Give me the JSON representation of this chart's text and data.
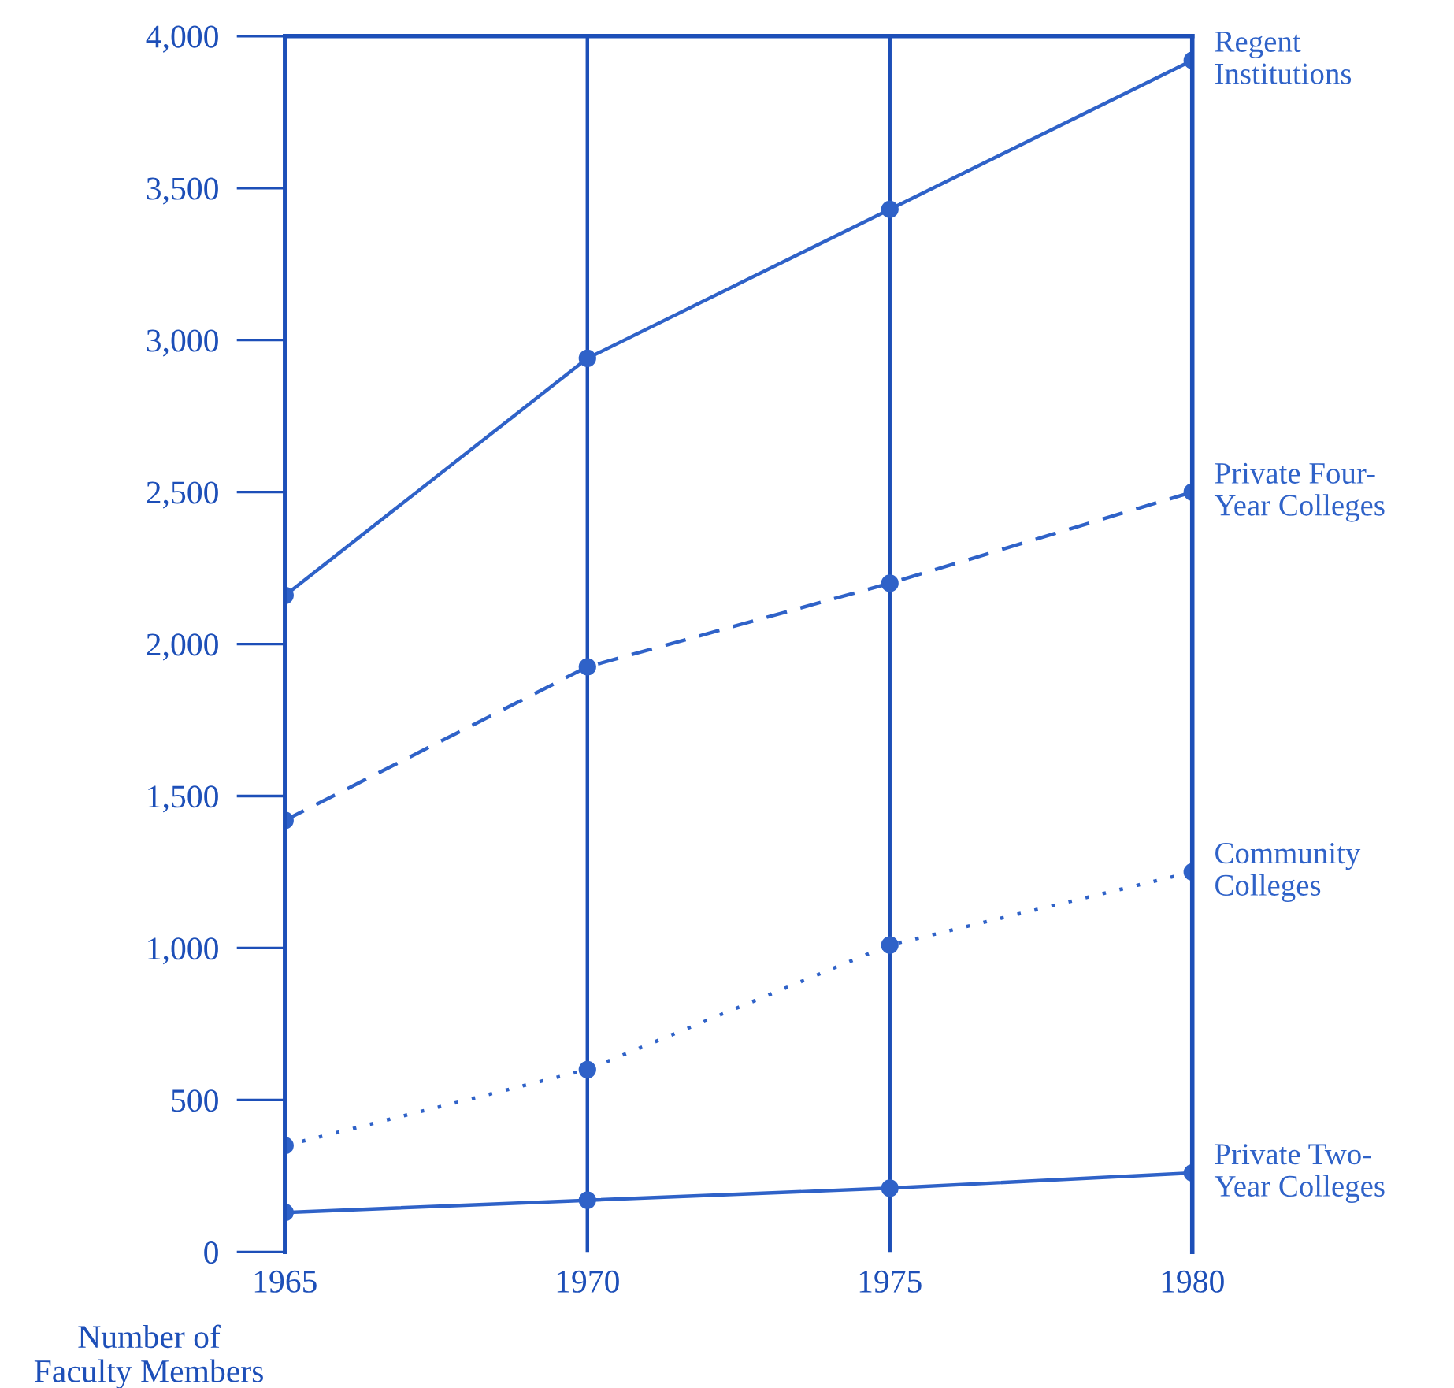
{
  "chart_data": {
    "type": "line",
    "x": [
      1965,
      1970,
      1975,
      1980
    ],
    "xlim": [
      1965,
      1980
    ],
    "xticks": [
      1965,
      1970,
      1975,
      1980
    ],
    "ylim": [
      0,
      4000
    ],
    "yticks": [
      0,
      {
        "value": 500,
        "label": "500"
      },
      {
        "value": 1000,
        "label": "1,000"
      },
      {
        "value": 1500,
        "label": "1,500"
      },
      {
        "value": 2000,
        "label": "2,000"
      },
      {
        "value": 2500,
        "label": "2,500"
      },
      {
        "value": 3000,
        "label": "3,000"
      },
      {
        "value": 3500,
        "label": "3,500"
      },
      {
        "value": 4000,
        "label": "4,000"
      }
    ],
    "ylabel": "Number of\nFaculty Members",
    "grid": "x",
    "legend": false,
    "marker": "circle",
    "series": [
      {
        "name": "Regent\nInstitutions",
        "color": "#2f62c8",
        "line_style": "solid",
        "values": [
          2160,
          2940,
          3430,
          3920
        ]
      },
      {
        "name": "Private Four-\nYear Colleges",
        "color": "#2f62c8",
        "line_style": "dashed",
        "values": [
          1420,
          1925,
          2200,
          2500
        ]
      },
      {
        "name": "Community\nColleges",
        "color": "#2f62c8",
        "line_style": "dotted",
        "values": [
          350,
          600,
          1010,
          1250
        ]
      },
      {
        "name": "Private Two-\nYear Colleges",
        "color": "#2f62c8",
        "line_style": "solid",
        "values": [
          130,
          170,
          210,
          260
        ]
      }
    ]
  }
}
